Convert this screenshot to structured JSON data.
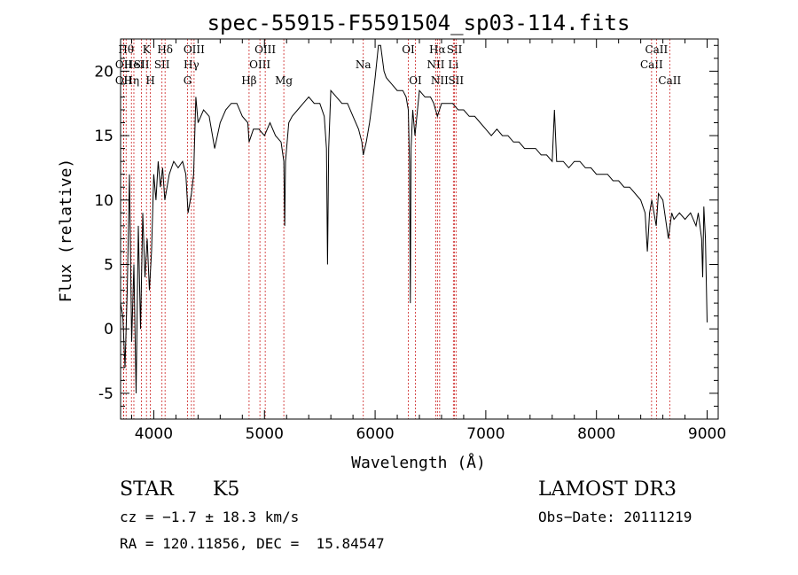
{
  "chart_data": {
    "type": "line",
    "title": "spec-55915-F5591504_sp03-114.fits",
    "xlabel": "Wavelength (Å)",
    "ylabel": "Flux (relative)",
    "xlim": [
      3700,
      9100
    ],
    "ylim": [
      -7,
      22.5
    ],
    "xticks": [
      4000,
      5000,
      6000,
      7000,
      8000,
      9000
    ],
    "yticks": [
      -5,
      0,
      5,
      10,
      15,
      20
    ],
    "series": [
      {
        "name": "flux",
        "points": [
          [
            3700,
            2
          ],
          [
            3720,
            1
          ],
          [
            3740,
            -3
          ],
          [
            3760,
            3
          ],
          [
            3780,
            12
          ],
          [
            3800,
            -1
          ],
          [
            3820,
            5
          ],
          [
            3840,
            -5
          ],
          [
            3860,
            8
          ],
          [
            3880,
            0
          ],
          [
            3900,
            9
          ],
          [
            3920,
            4
          ],
          [
            3940,
            7
          ],
          [
            3960,
            3
          ],
          [
            3980,
            6
          ],
          [
            4000,
            12
          ],
          [
            4020,
            10
          ],
          [
            4040,
            13
          ],
          [
            4060,
            11
          ],
          [
            4080,
            12.5
          ],
          [
            4100,
            10
          ],
          [
            4140,
            12
          ],
          [
            4180,
            13
          ],
          [
            4220,
            12.5
          ],
          [
            4260,
            13
          ],
          [
            4290,
            12
          ],
          [
            4310,
            9
          ],
          [
            4340,
            10.5
          ],
          [
            4360,
            12
          ],
          [
            4380,
            18
          ],
          [
            4400,
            16
          ],
          [
            4450,
            17
          ],
          [
            4500,
            16.5
          ],
          [
            4550,
            14
          ],
          [
            4600,
            16
          ],
          [
            4650,
            17
          ],
          [
            4700,
            17.5
          ],
          [
            4750,
            17.5
          ],
          [
            4800,
            16.5
          ],
          [
            4850,
            16
          ],
          [
            4861,
            14.5
          ],
          [
            4900,
            15.5
          ],
          [
            4950,
            15.5
          ],
          [
            5000,
            15
          ],
          [
            5050,
            16
          ],
          [
            5100,
            15
          ],
          [
            5150,
            14.5
          ],
          [
            5175,
            13
          ],
          [
            5183,
            8
          ],
          [
            5190,
            13
          ],
          [
            5220,
            16
          ],
          [
            5250,
            16.5
          ],
          [
            5300,
            17
          ],
          [
            5350,
            17.5
          ],
          [
            5400,
            18
          ],
          [
            5450,
            17.5
          ],
          [
            5500,
            17.5
          ],
          [
            5540,
            16.5
          ],
          [
            5560,
            14
          ],
          [
            5570,
            5
          ],
          [
            5580,
            14
          ],
          [
            5600,
            18.5
          ],
          [
            5650,
            18
          ],
          [
            5700,
            17.5
          ],
          [
            5750,
            17.5
          ],
          [
            5800,
            16.5
          ],
          [
            5850,
            15.5
          ],
          [
            5880,
            14.5
          ],
          [
            5893,
            13.5
          ],
          [
            5920,
            14.5
          ],
          [
            5950,
            16
          ],
          [
            5980,
            18
          ],
          [
            6000,
            19.5
          ],
          [
            6030,
            22
          ],
          [
            6050,
            22
          ],
          [
            6080,
            20
          ],
          [
            6100,
            19.5
          ],
          [
            6150,
            19
          ],
          [
            6200,
            18.5
          ],
          [
            6250,
            18.5
          ],
          [
            6280,
            18
          ],
          [
            6300,
            17
          ],
          [
            6310,
            13
          ],
          [
            6318,
            2
          ],
          [
            6325,
            14
          ],
          [
            6340,
            17
          ],
          [
            6360,
            15
          ],
          [
            6400,
            18.5
          ],
          [
            6450,
            18
          ],
          [
            6500,
            18
          ],
          [
            6530,
            17.5
          ],
          [
            6563,
            16.5
          ],
          [
            6600,
            17.5
          ],
          [
            6650,
            17.5
          ],
          [
            6700,
            17.5
          ],
          [
            6750,
            17
          ],
          [
            6800,
            17
          ],
          [
            6850,
            16.5
          ],
          [
            6900,
            16.5
          ],
          [
            6950,
            16
          ],
          [
            7000,
            15.5
          ],
          [
            7050,
            15
          ],
          [
            7100,
            15.5
          ],
          [
            7150,
            15
          ],
          [
            7200,
            15
          ],
          [
            7250,
            14.5
          ],
          [
            7300,
            14.5
          ],
          [
            7350,
            14
          ],
          [
            7400,
            14
          ],
          [
            7450,
            14
          ],
          [
            7500,
            13.5
          ],
          [
            7550,
            13.5
          ],
          [
            7600,
            13
          ],
          [
            7620,
            17
          ],
          [
            7640,
            13
          ],
          [
            7700,
            13
          ],
          [
            7750,
            12.5
          ],
          [
            7800,
            13
          ],
          [
            7850,
            13
          ],
          [
            7900,
            12.5
          ],
          [
            7950,
            12.5
          ],
          [
            8000,
            12
          ],
          [
            8050,
            12
          ],
          [
            8100,
            12
          ],
          [
            8150,
            11.5
          ],
          [
            8200,
            11.5
          ],
          [
            8250,
            11
          ],
          [
            8300,
            11
          ],
          [
            8350,
            10.5
          ],
          [
            8400,
            10
          ],
          [
            8440,
            9
          ],
          [
            8460,
            6
          ],
          [
            8480,
            9
          ],
          [
            8500,
            10
          ],
          [
            8540,
            8
          ],
          [
            8560,
            10.5
          ],
          [
            8600,
            10
          ],
          [
            8650,
            7
          ],
          [
            8680,
            9
          ],
          [
            8700,
            8.5
          ],
          [
            8750,
            9
          ],
          [
            8800,
            8.5
          ],
          [
            8850,
            9
          ],
          [
            8900,
            8
          ],
          [
            8920,
            9
          ],
          [
            8950,
            7
          ],
          [
            8960,
            4
          ],
          [
            8970,
            9.5
          ],
          [
            8985,
            7
          ],
          [
            9000,
            0.5
          ]
        ]
      }
    ],
    "line_markers": [
      {
        "wl": 3750,
        "row": 0,
        "label": "Hθ"
      },
      {
        "wl": 3728,
        "row": 1,
        "label": "OII"
      },
      {
        "wl": 3728,
        "row": 2,
        "label": "OII"
      },
      {
        "wl": 3798,
        "row": 2,
        "label": "Hη"
      },
      {
        "wl": 3820,
        "row": 1,
        "label": "HeI"
      },
      {
        "wl": 3889,
        "row": 1,
        "label": "SII"
      },
      {
        "wl": 3934,
        "row": 0,
        "label": "K"
      },
      {
        "wl": 3969,
        "row": 2,
        "label": "H"
      },
      {
        "wl": 4102,
        "row": 0,
        "label": "Hδ"
      },
      {
        "wl": 4074,
        "row": 1,
        "label": "SII"
      },
      {
        "wl": 4340,
        "row": 1,
        "label": "Hγ"
      },
      {
        "wl": 4364,
        "row": 0,
        "label": "OIII"
      },
      {
        "wl": 4305,
        "row": 2,
        "label": "G"
      },
      {
        "wl": 4861,
        "row": 2,
        "label": "Hβ"
      },
      {
        "wl": 4959,
        "row": 1,
        "label": "OIII"
      },
      {
        "wl": 5007,
        "row": 0,
        "label": "OIII"
      },
      {
        "wl": 5175,
        "row": 2,
        "label": "Mg"
      },
      {
        "wl": 5893,
        "row": 1,
        "label": "Na"
      },
      {
        "wl": 6300,
        "row": 0,
        "label": "OI"
      },
      {
        "wl": 6364,
        "row": 2,
        "label": "OI"
      },
      {
        "wl": 6548,
        "row": 1,
        "label": "NII"
      },
      {
        "wl": 6563,
        "row": 0,
        "label": "Hα"
      },
      {
        "wl": 6583,
        "row": 2,
        "label": "NII"
      },
      {
        "wl": 6707,
        "row": 1,
        "label": "Li"
      },
      {
        "wl": 6717,
        "row": 0,
        "label": "SII"
      },
      {
        "wl": 6731,
        "row": 2,
        "label": "SII"
      },
      {
        "wl": 8498,
        "row": 1,
        "label": "CaII"
      },
      {
        "wl": 8542,
        "row": 0,
        "label": "CaII"
      },
      {
        "wl": 8662,
        "row": 2,
        "label": "CaII"
      }
    ]
  },
  "info": {
    "class": "STAR",
    "subclass": "K5",
    "survey": "LAMOST DR3",
    "cz": "cz = −1.7 ± 18.3 km/s",
    "obs_date": "Obs−Date: 20111219",
    "radec": "RA = 120.11856, DEC =  15.84547"
  }
}
